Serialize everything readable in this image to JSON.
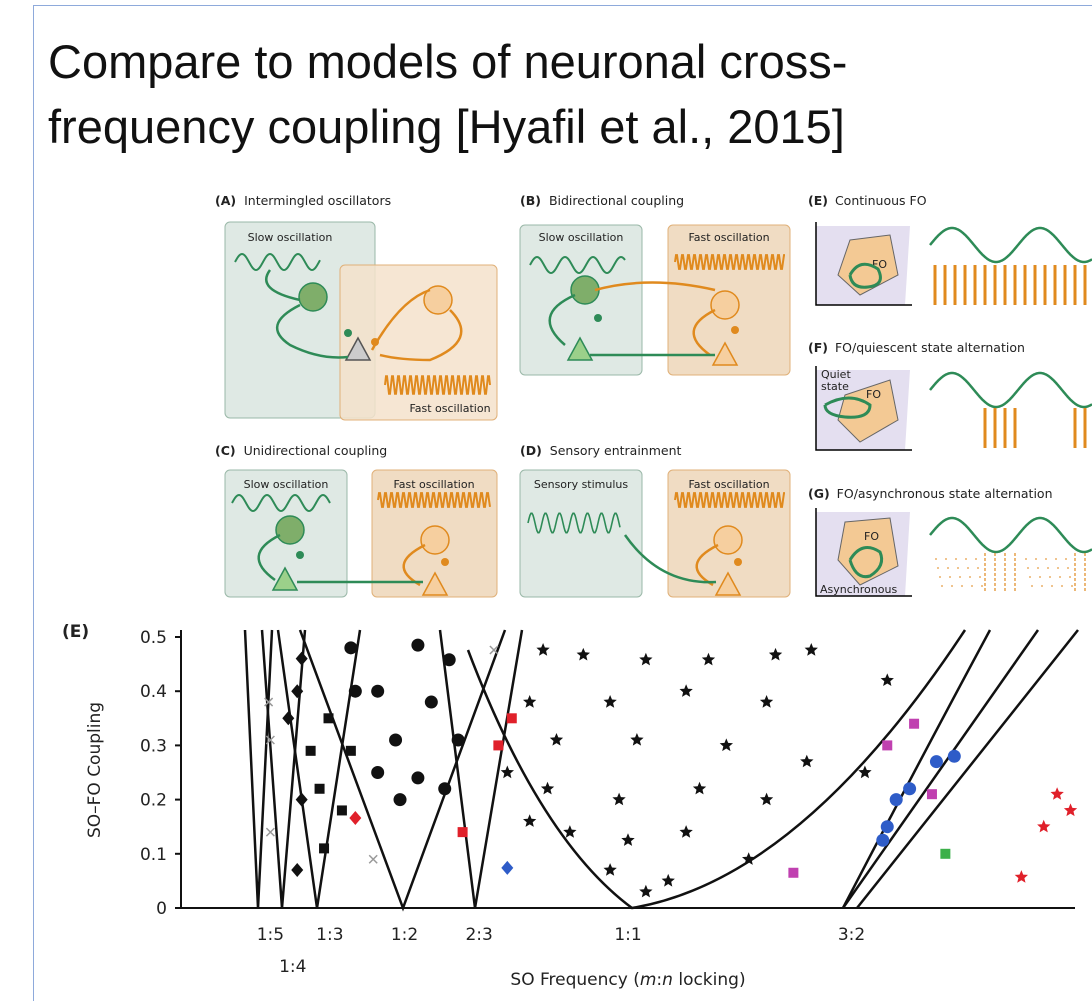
{
  "title": [
    "Compare to models of neuronal cross-",
    "frequency coupling [Hyafil et al., 2015]"
  ],
  "figure": {
    "panels": [
      {
        "label": "(A)",
        "title": "Intermingled oscillators",
        "boxes": [
          "Slow oscillation",
          "Fast oscillation"
        ]
      },
      {
        "label": "(B)",
        "title": "Bidirectional coupling",
        "boxes": [
          "Slow oscillation",
          "Fast oscillation"
        ]
      },
      {
        "label": "(C)",
        "title": "Unidirectional coupling",
        "boxes": [
          "Slow oscillation",
          "Fast oscillation"
        ]
      },
      {
        "label": "(D)",
        "title": "Sensory entrainment",
        "boxes": [
          "Sensory stimulus",
          "Fast oscillation"
        ]
      },
      {
        "label": "(E)",
        "title": "Continuous FO",
        "states": [
          "FO"
        ]
      },
      {
        "label": "(F)",
        "title": "FO/quiescent state alternation",
        "states": [
          "Quiet",
          "state",
          "FO"
        ]
      },
      {
        "label": "(G)",
        "title": "FO/asynchronous state alternation",
        "states": [
          "FO",
          "Asynchronous"
        ]
      }
    ]
  },
  "chart_data": {
    "type": "scatter",
    "panel_label": "(E)",
    "y_label": "SO–FO Coupling",
    "x_label": [
      "SO Frequency (",
      "m",
      ":",
      "n",
      " locking)"
    ],
    "xlim": [
      0,
      2
    ],
    "ylim": [
      0,
      0.5
    ],
    "xticks": [
      {
        "value": 0.2,
        "label": "1:5"
      },
      {
        "value": 0.25,
        "label": "1:4"
      },
      {
        "value": 0.333,
        "label": "1:3"
      },
      {
        "value": 0.5,
        "label": "1:2"
      },
      {
        "value": 0.667,
        "label": "2:3"
      },
      {
        "value": 1,
        "label": "1:1"
      },
      {
        "value": 1.5,
        "label": "3:2"
      }
    ],
    "yticks": [
      0,
      0.1,
      0.2,
      0.3,
      0.4,
      0.5
    ],
    "series": [
      {
        "marker": "star",
        "color": "#111111",
        "x": [
          0.81,
          0.9,
          1.04,
          1.18,
          1.33,
          1.41,
          1.58,
          0.78,
          0.96,
          1.13,
          1.31,
          0.84,
          1.02,
          1.22,
          1.4,
          0.82,
          0.98,
          1.16,
          1.31,
          0.87,
          1.0,
          1.13,
          1.27,
          0.96,
          1.09,
          1.04,
          0.78,
          0.73,
          1.53
        ],
        "values": [
          0.476,
          0.467,
          0.458,
          0.458,
          0.467,
          0.476,
          0.42,
          0.38,
          0.38,
          0.4,
          0.38,
          0.31,
          0.31,
          0.3,
          0.27,
          0.22,
          0.2,
          0.22,
          0.2,
          0.14,
          0.125,
          0.14,
          0.09,
          0.07,
          0.05,
          0.03,
          0.16,
          0.25,
          0.25
        ]
      },
      {
        "marker": "star",
        "color": "#e0202a",
        "x": [
          1.88,
          1.96,
          1.99,
          1.93
        ],
        "values": [
          0.057,
          0.21,
          0.18,
          0.15
        ]
      },
      {
        "marker": "circle",
        "color": "#111111",
        "x": [
          0.53,
          0.6,
          0.44,
          0.56,
          0.48,
          0.62,
          0.44,
          0.53,
          0.59,
          0.49,
          0.38,
          0.39
        ],
        "values": [
          0.485,
          0.458,
          0.4,
          0.38,
          0.31,
          0.31,
          0.25,
          0.24,
          0.22,
          0.2,
          0.48,
          0.4
        ]
      },
      {
        "marker": "circle",
        "color": "#2e5cc8",
        "x": [
          1.57,
          1.6,
          1.63,
          1.69,
          1.73,
          1.58
        ],
        "values": [
          0.125,
          0.2,
          0.22,
          0.27,
          0.28,
          0.15
        ]
      },
      {
        "marker": "square",
        "color": "#111111",
        "x": [
          0.29,
          0.33,
          0.38,
          0.31,
          0.36,
          0.32
        ],
        "values": [
          0.29,
          0.35,
          0.29,
          0.22,
          0.18,
          0.11
        ]
      },
      {
        "marker": "square",
        "color": "#e0202a",
        "x": [
          0.63,
          0.74,
          0.71
        ],
        "values": [
          0.14,
          0.35,
          0.3
        ]
      },
      {
        "marker": "square",
        "color": "#c040b0",
        "x": [
          1.58,
          1.64,
          1.68,
          1.37
        ],
        "values": [
          0.3,
          0.34,
          0.21,
          0.065
        ]
      },
      {
        "marker": "square",
        "color": "#3cb04a",
        "x": [
          1.71
        ],
        "values": [
          0.1
        ]
      },
      {
        "marker": "diamond",
        "color": "#111111",
        "x": [
          0.27,
          0.26,
          0.24,
          0.27,
          0.26
        ],
        "values": [
          0.46,
          0.4,
          0.35,
          0.2,
          0.07
        ]
      },
      {
        "marker": "diamond",
        "color": "#e0202a",
        "x": [
          0.39
        ],
        "values": [
          0.166
        ]
      },
      {
        "marker": "diamond",
        "color": "#2e5cc8",
        "x": [
          0.73
        ],
        "values": [
          0.074
        ]
      },
      {
        "marker": "x",
        "color": "#999999",
        "x": [
          0.196,
          0.2,
          0.2,
          0.43,
          0.7
        ],
        "values": [
          0.38,
          0.31,
          0.14,
          0.09,
          0.476
        ]
      }
    ]
  }
}
